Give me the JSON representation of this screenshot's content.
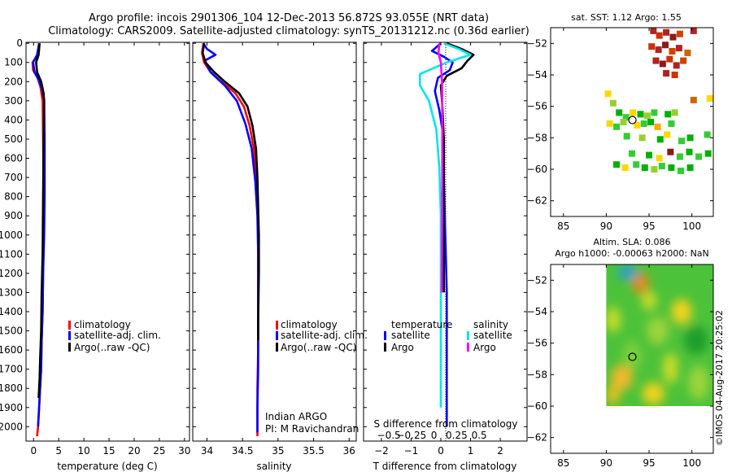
{
  "header": {
    "line1": "Argo profile: incois 2901306_104 12-Dec-2013 56.872S 93.055E (NRT data)",
    "line2": "Climatology: CARS2009. Satellite-adjusted climatology: synTS_20131212.nc (0.36d earlier)"
  },
  "footer": {
    "stamp": "©IMOS 04-Aug-2017 20:25:02"
  },
  "colors": {
    "climatology": "#ff0000",
    "satellite": "#0000ff",
    "argo": "#000000",
    "sat_salinity": "#00e5ee",
    "argo_salinity": "#ff00ff"
  },
  "chart_data": [
    {
      "id": "temperature",
      "type": "line",
      "xlabel": "temperature (deg C)",
      "ylabel": "",
      "xlim": [
        -1.5,
        31
      ],
      "ylim": [
        2075,
        -5
      ],
      "xticks": [
        0,
        5,
        10,
        15,
        20,
        25,
        30
      ],
      "xtick_labels": [
        "0",
        "5",
        "10",
        "15",
        "20",
        "25",
        "30"
      ],
      "yticks": [
        0,
        100,
        200,
        300,
        400,
        500,
        600,
        700,
        800,
        900,
        1000,
        1100,
        1200,
        1300,
        1400,
        1500,
        1600,
        1700,
        1800,
        1900,
        2000
      ],
      "ytick_labels": [
        "0",
        "100",
        "200",
        "300",
        "400",
        "500",
        "600",
        "700",
        "800",
        "900",
        "1000",
        "1100",
        "1200",
        "1300",
        "1400",
        "1500",
        "1600",
        "1700",
        "1800",
        "1900",
        "2000"
      ],
      "legend": [
        "climatology",
        "satellite-adj. clim.",
        "Argo(..raw -QC)"
      ],
      "annotation": [],
      "series": [
        {
          "name": "climatology",
          "color": "#ff0000",
          "x": [
            1.1,
            0.9,
            -0.2,
            -0.1,
            0.8,
            1.4,
            1.8,
            1.9,
            2.0,
            2.0,
            1.9,
            1.8,
            1.6,
            1.5,
            1.3,
            1.1,
            0.9,
            0.7
          ],
          "y": [
            0,
            60,
            100,
            140,
            180,
            230,
            300,
            500,
            800,
            1000,
            1200,
            1400,
            1550,
            1700,
            1800,
            1900,
            2000,
            2050
          ]
        },
        {
          "name": "satellite",
          "color": "#0000ff",
          "x": [
            1.1,
            0.7,
            -0.1,
            0.2,
            1.0,
            1.7,
            2.1,
            2.2,
            2.2,
            2.1,
            1.9,
            1.8,
            1.6,
            1.5,
            1.3,
            1.1,
            0.9
          ],
          "y": [
            0,
            60,
            100,
            150,
            190,
            240,
            300,
            500,
            800,
            1000,
            1200,
            1400,
            1550,
            1700,
            1800,
            1900,
            2000
          ]
        },
        {
          "name": "argo",
          "color": "#000000",
          "x": [
            1.2,
            1.0,
            0.5,
            0.7,
            1.5,
            2.0,
            2.1,
            2.0,
            1.9,
            1.8,
            1.6,
            1.5,
            1.3,
            1.2,
            1.0
          ],
          "y": [
            0,
            60,
            100,
            150,
            200,
            260,
            300,
            500,
            800,
            1100,
            1300,
            1500,
            1650,
            1750,
            1850
          ]
        }
      ]
    },
    {
      "id": "salinity",
      "type": "line",
      "xlabel": "salinity",
      "ylabel": "",
      "xlim": [
        33.8,
        36.1
      ],
      "ylim": [
        2075,
        -5
      ],
      "xticks": [
        34,
        34.5,
        35,
        35.5,
        36
      ],
      "xtick_labels": [
        "34",
        "34.5",
        "35",
        "35.5",
        "36"
      ],
      "yticks": [],
      "legend": [
        "climatology",
        "satellite-adj. clim.",
        "Argo(..raw -QC)"
      ],
      "annotation": [
        "Indian ARGO",
        "PI: M Ravichandran"
      ],
      "series": [
        {
          "name": "climatology",
          "color": "#ff0000",
          "x": [
            33.95,
            33.93,
            33.96,
            34.05,
            34.2,
            34.4,
            34.52,
            34.6,
            34.66,
            34.69,
            34.71,
            34.72,
            34.72,
            34.72,
            34.72,
            34.71,
            34.71,
            34.71
          ],
          "y": [
            0,
            50,
            100,
            150,
            200,
            260,
            330,
            430,
            550,
            700,
            850,
            1000,
            1200,
            1400,
            1600,
            1800,
            2000,
            2050
          ]
        },
        {
          "name": "satellite",
          "color": "#0000ff",
          "x": [
            33.95,
            34.0,
            34.12,
            33.97,
            34.05,
            34.25,
            34.42,
            34.54,
            34.63,
            34.68,
            34.71,
            34.72,
            34.72,
            34.72,
            34.71,
            34.71
          ],
          "y": [
            0,
            30,
            60,
            90,
            150,
            220,
            300,
            420,
            550,
            720,
            900,
            1100,
            1400,
            1700,
            1900,
            2030
          ]
        },
        {
          "name": "argo",
          "color": "#000000",
          "x": [
            33.96,
            33.94,
            33.98,
            34.1,
            34.25,
            34.45,
            34.57,
            34.64,
            34.69,
            34.71,
            34.72,
            34.73,
            34.73,
            34.72,
            34.72
          ],
          "y": [
            0,
            50,
            100,
            150,
            200,
            260,
            330,
            430,
            550,
            700,
            850,
            1000,
            1200,
            1450,
            1550
          ]
        }
      ]
    },
    {
      "id": "difference",
      "type": "line",
      "xlabel": "T difference from climatology",
      "xlabel_top": "S difference from climatology",
      "xlim": [
        -2.6,
        2.9
      ],
      "ylim": [
        2075,
        -5
      ],
      "xticks": [
        -2,
        -1,
        0,
        1,
        2
      ],
      "xtick_labels": [
        "−2",
        "−1",
        "0",
        "1",
        "2"
      ],
      "sticks": [
        -0.5,
        -0.25,
        0,
        0.25,
        0.5
      ],
      "stick_labels": [
        "−0.5",
        "−0.25",
        "0",
        "0.25",
        "0.5"
      ],
      "legend_titles": [
        "temperature",
        "salinity"
      ],
      "legend": [
        "satellite",
        "Argo",
        "satellite",
        "Argo"
      ],
      "series": [
        {
          "name": "T satellite",
          "color": "#0000ff",
          "x": [
            0.0,
            -0.3,
            0.1,
            0.4,
            0.3,
            -0.1,
            -0.2,
            -0.05,
            0.1,
            0.1,
            0.15,
            0.2,
            0.2,
            0.2,
            0.2,
            0.2
          ],
          "y": [
            0,
            40,
            70,
            100,
            140,
            180,
            250,
            350,
            500,
            700,
            1000,
            1300,
            1600,
            1800,
            1950,
            2000
          ]
        },
        {
          "name": "T argo",
          "color": "#000000",
          "x": [
            0.2,
            0.7,
            1.1,
            0.9,
            0.7,
            0.2,
            0.0,
            0.05,
            0.1,
            0.1,
            0.1,
            0.1
          ],
          "y": [
            0,
            30,
            60,
            90,
            130,
            170,
            220,
            320,
            500,
            800,
            1100,
            1300
          ]
        },
        {
          "name": "S satellite",
          "color": "#00e5ee",
          "x": [
            0.1,
            0.6,
            1.0,
            0.2,
            -0.7,
            -0.7,
            -0.4,
            -0.15,
            -0.05,
            0.0,
            0.0,
            0.0,
            0.0
          ],
          "y": [
            0,
            30,
            60,
            100,
            160,
            220,
            300,
            450,
            650,
            900,
            1200,
            1600,
            1900
          ]
        },
        {
          "name": "S argo",
          "color": "#ff00ff",
          "x": [
            -0.05,
            -0.08,
            0.0,
            0.04,
            0.05,
            0.05,
            0.04,
            0.03
          ],
          "y": [
            0,
            50,
            100,
            200,
            400,
            700,
            1000,
            1300
          ]
        }
      ]
    },
    {
      "id": "sst_map",
      "type": "heatmap",
      "title": "sat. SST: 1.12 Argo: 1.55",
      "xlim": [
        83.5,
        102.5
      ],
      "ylim": [
        -63,
        -51
      ],
      "xticks": [
        85,
        90,
        95,
        100
      ],
      "xtick_labels": [
        "85",
        "90",
        "95",
        "100"
      ],
      "yticks": [
        -52,
        -54,
        -56,
        -58,
        -60,
        -62
      ],
      "ytick_labels": [
        "−52",
        "−54",
        "−56",
        "−58",
        "−60",
        "−62"
      ],
      "float_position": [
        93.055,
        -56.872
      ],
      "cells": [
        [
          95.5,
          -51.2,
          "#b22222"
        ],
        [
          96.2,
          -51.5,
          "#cc3300"
        ],
        [
          97.0,
          -51.3,
          "#b22222"
        ],
        [
          97.8,
          -51.6,
          "#8b1a1a"
        ],
        [
          98.6,
          -51.4,
          "#cc4400"
        ],
        [
          100.2,
          -51.2,
          "#b22222"
        ],
        [
          95.3,
          -52.2,
          "#cc3300"
        ],
        [
          96.1,
          -52.4,
          "#b22222"
        ],
        [
          96.9,
          -52.1,
          "#8b1a1a"
        ],
        [
          97.7,
          -52.5,
          "#cc4400"
        ],
        [
          98.5,
          -52.3,
          "#b22222"
        ],
        [
          99.5,
          -52.6,
          "#cc6600"
        ],
        [
          95.8,
          -53.1,
          "#b22222"
        ],
        [
          96.6,
          -53.3,
          "#8b1a1a"
        ],
        [
          97.4,
          -53.0,
          "#cc3300"
        ],
        [
          98.2,
          -53.4,
          "#b22222"
        ],
        [
          99.0,
          -53.1,
          "#cc4400"
        ],
        [
          97.0,
          -53.9,
          "#b22222"
        ],
        [
          98.0,
          -54.0,
          "#cc3300"
        ],
        [
          90.2,
          -55.2,
          "#ffd700"
        ],
        [
          90.8,
          -55.8,
          "#9acd32"
        ],
        [
          100.2,
          -55.6,
          "#cc6600"
        ],
        [
          102.1,
          -55.5,
          "#ffd700"
        ],
        [
          91.5,
          -56.4,
          "#00b000"
        ],
        [
          92.3,
          -56.7,
          "#32cd32"
        ],
        [
          93.1,
          -56.4,
          "#ffd700"
        ],
        [
          94.0,
          -56.5,
          "#00b000"
        ],
        [
          94.8,
          -56.6,
          "#9acd32"
        ],
        [
          95.6,
          -56.4,
          "#32cd32"
        ],
        [
          97.2,
          -56.5,
          "#00b000"
        ],
        [
          98.0,
          -56.4,
          "#9acd32"
        ],
        [
          90.4,
          -57.1,
          "#ffd700"
        ],
        [
          91.2,
          -57.3,
          "#32cd32"
        ],
        [
          92.0,
          -57.0,
          "#9acd32"
        ],
        [
          93.6,
          -57.2,
          "#ffd700"
        ],
        [
          94.4,
          -57.1,
          "#32cd32"
        ],
        [
          95.2,
          -57.0,
          "#00b000"
        ],
        [
          96.0,
          -57.3,
          "#ffa500"
        ],
        [
          97.6,
          -57.1,
          "#32cd32"
        ],
        [
          92.4,
          -57.9,
          "#32cd32"
        ],
        [
          94.2,
          -58.0,
          "#9acd32"
        ],
        [
          96.3,
          -58.1,
          "#00b000"
        ],
        [
          97.1,
          -57.8,
          "#ffd700"
        ],
        [
          98.8,
          -58.2,
          "#32cd32"
        ],
        [
          99.8,
          -58.0,
          "#00b000"
        ],
        [
          101.8,
          -57.8,
          "#32cd32"
        ],
        [
          93.0,
          -59.0,
          "#32cd32"
        ],
        [
          95.0,
          -59.1,
          "#00b000"
        ],
        [
          96.2,
          -59.3,
          "#ffd700"
        ],
        [
          97.5,
          -58.9,
          "#8b1a1a"
        ],
        [
          98.6,
          -59.2,
          "#32cd32"
        ],
        [
          99.7,
          -58.9,
          "#00b000"
        ],
        [
          100.8,
          -59.2,
          "#32cd32"
        ],
        [
          101.9,
          -59.0,
          "#00b000"
        ],
        [
          91.2,
          -59.7,
          "#00b000"
        ],
        [
          92.2,
          -59.9,
          "#ffd700"
        ],
        [
          93.5,
          -59.7,
          "#32cd32"
        ],
        [
          94.5,
          -59.9,
          "#00b000"
        ],
        [
          95.6,
          -60.0,
          "#9acd32"
        ],
        [
          96.5,
          -59.8,
          "#32cd32"
        ],
        [
          97.6,
          -59.9,
          "#00b000"
        ],
        [
          98.7,
          -60.1,
          "#32cd32"
        ],
        [
          99.8,
          -59.9,
          "#00b000"
        ]
      ]
    },
    {
      "id": "sla_map",
      "type": "heatmap",
      "title": "Altim. SLA: 0.086",
      "subtitle": "Argo h1000: -0.00063 h2000: NaN",
      "xlim": [
        83.5,
        102.5
      ],
      "ylim": [
        -63,
        -51
      ],
      "xticks": [
        85,
        90,
        95,
        100
      ],
      "xtick_labels": [
        "85",
        "90",
        "95",
        "100"
      ],
      "yticks": [
        -52,
        -54,
        -56,
        -58,
        -60,
        -62
      ],
      "ytick_labels": [
        "−52",
        "−54",
        "−56",
        "−58",
        "−60",
        "−62"
      ],
      "data_extent": [
        90,
        102.5,
        -60,
        -51
      ],
      "float_position": [
        93.055,
        -56.872
      ],
      "base_color": "#4cc23a",
      "blobs": [
        [
          94.0,
          -52.2,
          1.0,
          0.7,
          "#e08a1e"
        ],
        [
          92.5,
          -51.5,
          1.2,
          0.5,
          "#2aa0c8"
        ],
        [
          98.8,
          -54.0,
          1.2,
          0.8,
          "#f2d21a"
        ],
        [
          90.8,
          -54.5,
          0.9,
          0.8,
          "#c8dc2a"
        ],
        [
          96.0,
          -55.2,
          1.3,
          0.9,
          "#9bd43a"
        ],
        [
          93.0,
          -56.8,
          1.1,
          0.9,
          "#7bcf3a"
        ],
        [
          97.5,
          -57.6,
          0.9,
          1.0,
          "#c8dc2a"
        ],
        [
          91.8,
          -58.2,
          1.3,
          0.8,
          "#f0b82a"
        ],
        [
          90.8,
          -59.3,
          0.8,
          0.6,
          "#e8c020"
        ],
        [
          95.5,
          -59.2,
          1.3,
          0.7,
          "#f2d21a"
        ],
        [
          100.8,
          -58.5,
          1.2,
          1.1,
          "#9bd43a"
        ],
        [
          100.5,
          -55.8,
          1.4,
          0.9,
          "#1e9e2a"
        ],
        [
          95.0,
          -53.3,
          0.9,
          0.6,
          "#c8dc2a"
        ]
      ]
    }
  ]
}
